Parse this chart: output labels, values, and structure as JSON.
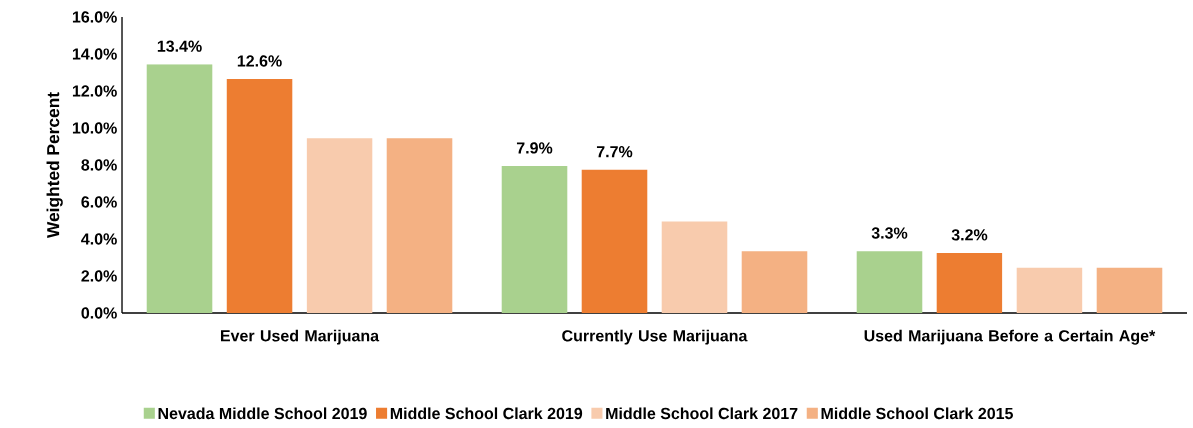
{
  "chart_data": {
    "type": "bar",
    "ylabel": "Weighted Percent",
    "categories": [
      "Ever Used Marijuana",
      "Currently Use Marijuana",
      "Used Marijuana Before a Certain Age*"
    ],
    "series": [
      {
        "name": "Nevada Middle School 2019",
        "color": "#a9d18e",
        "values": [
          13.4,
          7.9,
          3.3
        ],
        "value_labels": [
          "13.4%",
          "7.9%",
          "3.3%"
        ]
      },
      {
        "name": "Middle School Clark 2019",
        "color": "#ed7d31",
        "values": [
          12.6,
          7.7,
          3.2
        ],
        "value_labels": [
          "12.6%",
          "7.7%",
          "3.2%"
        ]
      },
      {
        "name": "Middle School Clark 2017",
        "color": "#f8cbad",
        "values": [
          9.4,
          4.9,
          2.4
        ]
      },
      {
        "name": "Middle School Clark 2015",
        "color": "#f4b183",
        "values": [
          9.4,
          3.3,
          2.4
        ]
      }
    ],
    "ylim": [
      0,
      16
    ],
    "yticks": [
      {
        "value": 0,
        "label": "0.0%"
      },
      {
        "value": 2,
        "label": "2.0%"
      },
      {
        "value": 4,
        "label": "4.0%"
      },
      {
        "value": 6,
        "label": "6.0%"
      },
      {
        "value": 8,
        "label": "8.0%"
      },
      {
        "value": 10,
        "label": "10.0%"
      },
      {
        "value": 12,
        "label": "12.0%"
      },
      {
        "value": 14,
        "label": "14.0%"
      },
      {
        "value": 16,
        "label": "16.0%"
      }
    ],
    "grid": false,
    "legend": "bottom"
  }
}
